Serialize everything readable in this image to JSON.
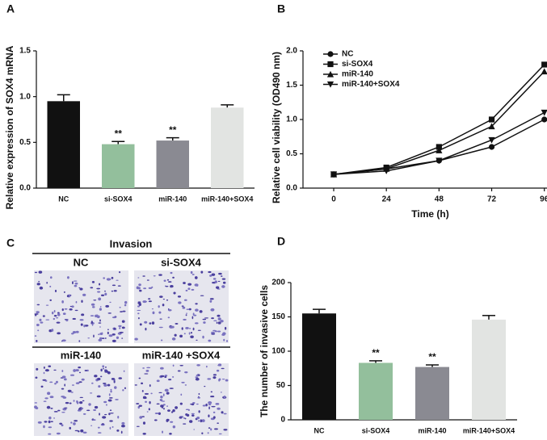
{
  "chart_data": [
    {
      "type": "bar",
      "panel": "A",
      "ylabel": "Relative expression of SOX4 mRNA",
      "categories": [
        "NC",
        "si-SOX4",
        "miR-140",
        "miR-140+SOX4"
      ],
      "values": [
        0.95,
        0.48,
        0.52,
        0.88
      ],
      "errors": [
        0.07,
        0.03,
        0.03,
        0.03
      ],
      "colors": [
        "#111111",
        "#93bf9c",
        "#8a8a92",
        "#e2e4e2"
      ],
      "ylim": [
        0,
        1.5
      ],
      "yticks": [
        {
          "value": 0,
          "label": "0.0"
        },
        0.5,
        {
          "value": 1,
          "label": "1.0"
        },
        1.5
      ],
      "annotations": [
        {
          "text": "**",
          "category": "si-SOX4"
        },
        {
          "text": "**",
          "category": "miR-140"
        }
      ]
    },
    {
      "type": "line",
      "panel": "B",
      "ylabel": "Relative cell viability (OD490 nm)",
      "xlabel": "Time (h)",
      "x": [
        0,
        24,
        48,
        72,
        96
      ],
      "xlim": [
        -14,
        102
      ],
      "xticks": [
        0,
        24,
        48,
        72,
        96
      ],
      "ylim": [
        0,
        2
      ],
      "yticks": [
        {
          "value": 0,
          "label": "0.0"
        },
        0.5,
        {
          "value": 1,
          "label": "1.0"
        },
        1.5,
        {
          "value": 2,
          "label": "2.0"
        }
      ],
      "series": [
        {
          "name": "NC",
          "color": "#111111",
          "values": [
            0.2,
            0.28,
            0.4,
            0.6,
            1.0
          ]
        },
        {
          "name": "si-SOX4",
          "color": "#111111",
          "values": [
            0.2,
            0.3,
            0.6,
            1.0,
            1.8
          ]
        },
        {
          "name": "miR-140",
          "color": "#111111",
          "values": [
            0.2,
            0.28,
            0.55,
            0.9,
            1.7
          ]
        },
        {
          "name": "miR-140+SOX4",
          "color": "#111111",
          "values": [
            0.2,
            0.25,
            0.4,
            0.7,
            1.1
          ]
        }
      ],
      "annotations": [
        {
          "text": "**"
        },
        {
          "text": "**"
        }
      ]
    },
    {
      "type": "bar",
      "panel": "D",
      "ylabel": "The number of invasive cells",
      "categories": [
        "NC",
        "si-SOX4",
        "miR-140",
        "miR-140+SOX4"
      ],
      "values": [
        155,
        83,
        77,
        146
      ],
      "errors": [
        6,
        3,
        3,
        6
      ],
      "colors": [
        "#111111",
        "#93bf9c",
        "#8a8a92",
        "#e2e4e2"
      ],
      "ylim": [
        0,
        200
      ],
      "yticks": [
        0,
        50,
        100,
        150,
        200
      ],
      "annotations": [
        {
          "text": "**",
          "category": "si-SOX4"
        },
        {
          "text": "**",
          "category": "miR-140"
        }
      ]
    }
  ],
  "panel_c": {
    "panel": "C",
    "title": "Invasion",
    "labels": [
      "NC",
      "si-SOX4",
      "miR-140",
      "miR-140 +SOX4"
    ]
  }
}
